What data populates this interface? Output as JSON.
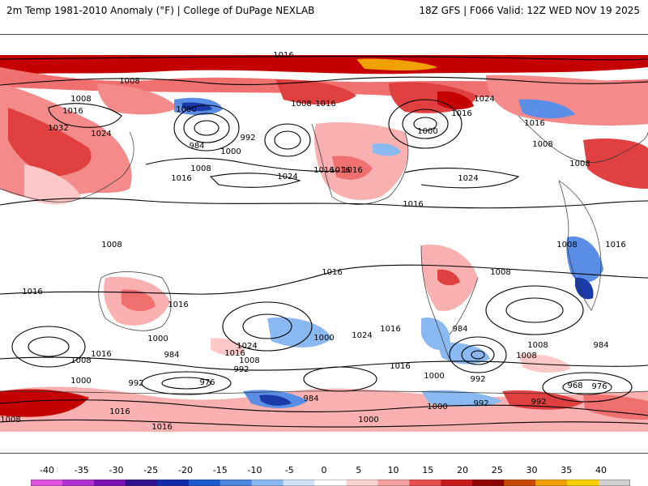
{
  "header": {
    "left": "2m Temp 1981-2010 Anomaly (°F) | College of DuPage NEXLAB",
    "right": "18Z GFS | F066 Valid: 12Z WED NOV 19 2025"
  },
  "colorbar": {
    "ticks": [
      "-40",
      "-35",
      "-30",
      "-25",
      "-20",
      "-15",
      "-10",
      "-5",
      "0",
      "5",
      "10",
      "15",
      "20",
      "25",
      "30",
      "35",
      "40"
    ],
    "colors": [
      "#e050e0",
      "#b030d0",
      "#7a10b0",
      "#30108a",
      "#102aa8",
      "#1a5acc",
      "#4a86e0",
      "#8ab8f0",
      "#cfe2fa",
      "#ffffff",
      "#fcd4d4",
      "#f6a0a0",
      "#e85050",
      "#c81818",
      "#8e0000",
      "#c84a00",
      "#f0a000",
      "#f8d000",
      "#d0d0d0"
    ]
  },
  "map": {
    "anomaly_colors": {
      "strong_warm": "#c40000",
      "warm": "#f07070",
      "light_warm": "#fcc8c8",
      "light_cold": "#bcd6f6",
      "cold": "#5a8ee6",
      "strong_cold": "#1a3aa8",
      "extreme_warm": "#f0a000"
    },
    "isobar_labels": [
      "1016",
      "1008",
      "1008",
      "1016",
      "1000",
      "1032",
      "1024",
      "984",
      "992",
      "1000",
      "1008",
      "1016",
      "1024",
      "1016",
      "1008",
      "1016",
      "1000",
      "1016",
      "1016",
      "1016",
      "1024",
      "1016",
      "1024",
      "1016",
      "1008",
      "1008",
      "1008",
      "1008",
      "1016",
      "1016",
      "1008",
      "1016",
      "1016",
      "1016",
      "1000",
      "1008",
      "1016",
      "1024",
      "1016",
      "1008",
      "992",
      "984",
      "976",
      "992",
      "1000",
      "1024",
      "1016",
      "1000",
      "984",
      "992",
      "1008",
      "1008",
      "1000",
      "984",
      "976",
      "968",
      "992",
      "984",
      "992",
      "1000",
      "1000",
      "1008",
      "1016",
      "1016"
    ]
  }
}
